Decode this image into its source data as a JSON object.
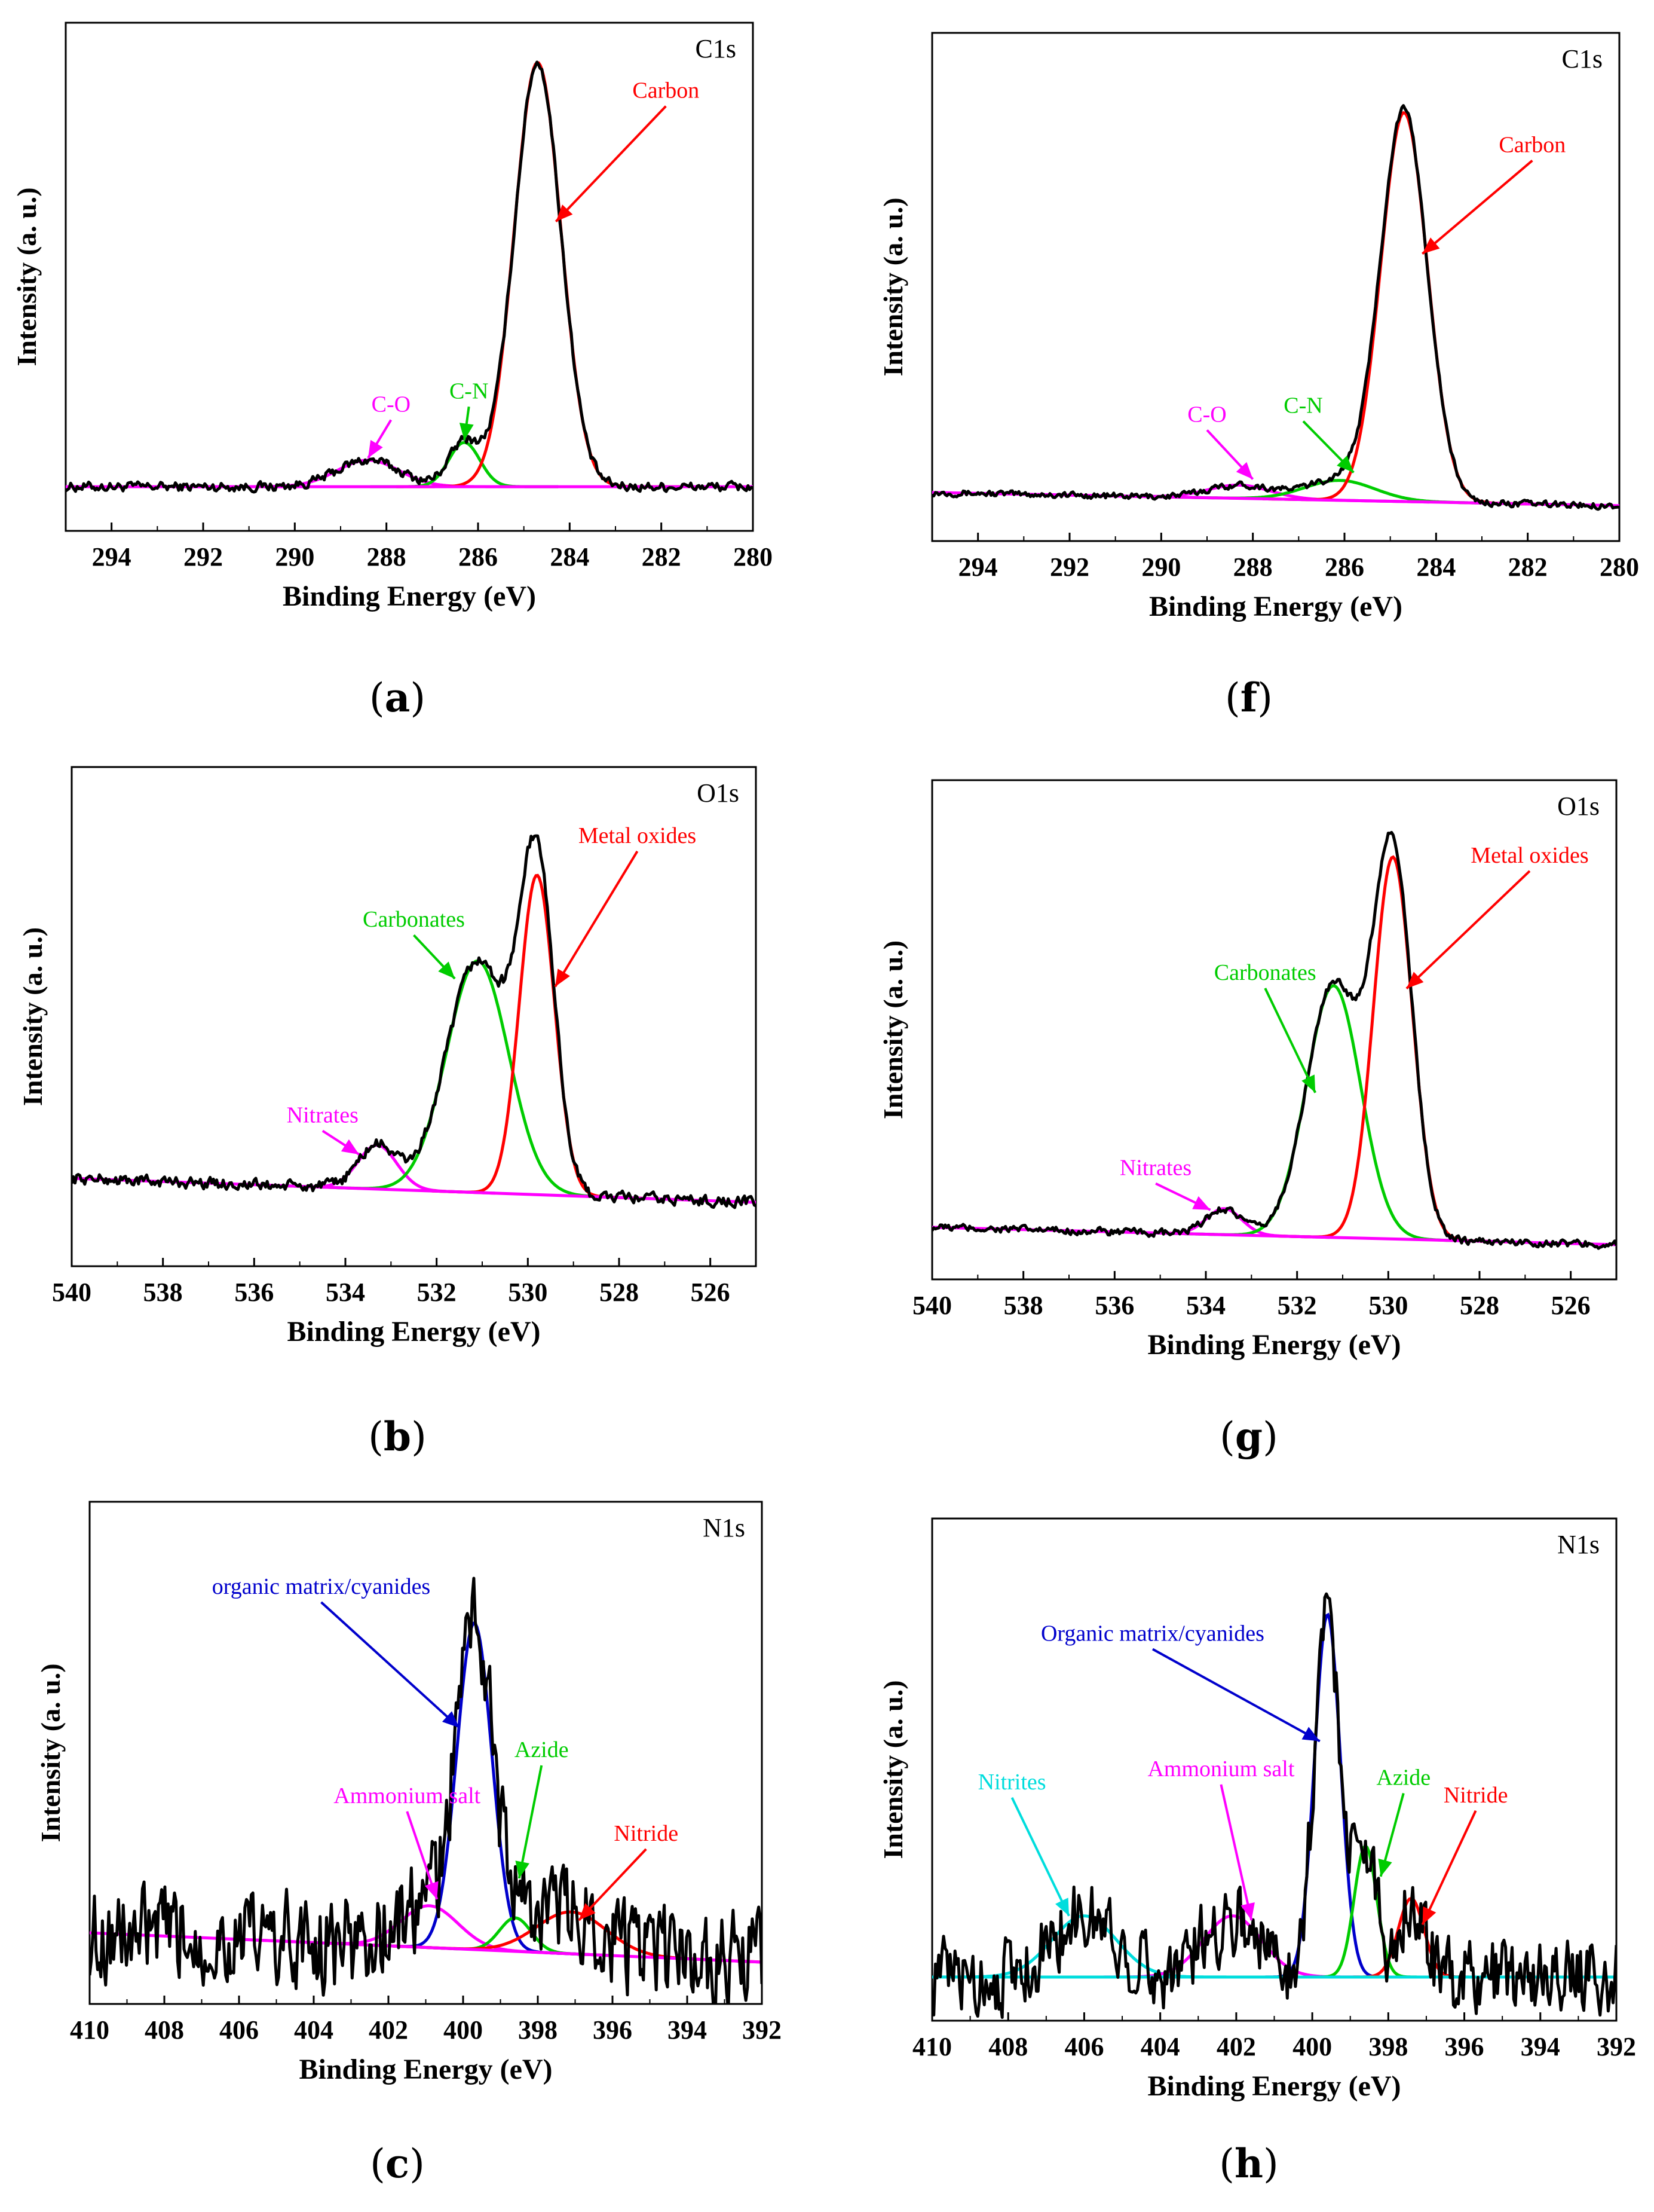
{
  "chart_data": [
    {
      "id": "a",
      "type": "line",
      "panel_label": "a",
      "core_level": "C1s",
      "xlabel": "Binding Energy (eV)",
      "ylabel": "Intensity (a. u.)",
      "xlim": [
        295,
        280
      ],
      "x_ticks": [
        294,
        292,
        290,
        288,
        286,
        284,
        282,
        280
      ],
      "ylim": [
        -0.1,
        1.05
      ],
      "baseline": {
        "color": "#ff00ff",
        "start": 0,
        "end": 0
      },
      "noise": 0.015,
      "peaks": [
        {
          "label": "C-O",
          "color": "#ff00ff",
          "center": 288.4,
          "height": 0.06,
          "fwhm": 1.6
        },
        {
          "label": "C-N",
          "color": "#00cc00",
          "center": 286.3,
          "height": 0.1,
          "fwhm": 0.8
        },
        {
          "label": "Carbon",
          "color": "#ff0000",
          "center": 284.7,
          "height": 0.96,
          "fwhm": 1.2
        }
      ],
      "annotations": [
        {
          "text": "C-O",
          "color": "#ff00ff",
          "text_pos": [
            287.9,
            0.17
          ],
          "arrow_to": [
            288.4,
            0.065
          ]
        },
        {
          "text": "C-N",
          "color": "#00cc00",
          "text_pos": [
            286.2,
            0.2
          ],
          "arrow_to": [
            286.3,
            0.105
          ]
        },
        {
          "text": "Carbon",
          "color": "#ff0000",
          "text_pos": [
            281.9,
            0.88
          ],
          "arrow_to": [
            284.3,
            0.6
          ]
        }
      ]
    },
    {
      "id": "f",
      "type": "line",
      "panel_label": "f",
      "core_level": "C1s",
      "xlabel": "Binding Energy (eV)",
      "ylabel": "Intensity (a. u.)",
      "xlim": [
        295,
        280
      ],
      "x_ticks": [
        294,
        292,
        290,
        288,
        286,
        284,
        282,
        280
      ],
      "ylim": [
        -0.1,
        1.05
      ],
      "baseline": {
        "color": "#ff00ff",
        "start": 0.01,
        "end": -0.02
      },
      "noise": 0.01,
      "peaks": [
        {
          "label": "C-O",
          "color": "#ff00ff",
          "center": 288.3,
          "height": 0.03,
          "fwhm": 1.6
        },
        {
          "label": "C-N",
          "color": "#00cc00",
          "center": 286.1,
          "height": 0.045,
          "fwhm": 1.8
        },
        {
          "label": "Carbon",
          "color": "#ff0000",
          "center": 284.7,
          "height": 0.88,
          "fwhm": 1.2
        }
      ],
      "annotations": [
        {
          "text": "C-O",
          "color": "#ff00ff",
          "text_pos": [
            289.0,
            0.17
          ],
          "arrow_to": [
            288.0,
            0.04
          ]
        },
        {
          "text": "C-N",
          "color": "#00cc00",
          "text_pos": [
            286.9,
            0.19
          ],
          "arrow_to": [
            285.8,
            0.055
          ]
        },
        {
          "text": "Carbon",
          "color": "#ff0000",
          "text_pos": [
            281.9,
            0.78
          ],
          "arrow_to": [
            284.3,
            0.55
          ]
        }
      ]
    },
    {
      "id": "b",
      "type": "line",
      "panel_label": "b",
      "core_level": "O1s",
      "xlabel": "Binding Energy (eV)",
      "ylabel": "Intensity (a. u.)",
      "xlim": [
        540,
        525
      ],
      "x_ticks": [
        540,
        538,
        536,
        534,
        532,
        530,
        528,
        526
      ],
      "ylim": [
        -0.2,
        1.05
      ],
      "baseline": {
        "color": "#ff00ff",
        "start": 0.02,
        "end": -0.04
      },
      "noise": 0.02,
      "peaks": [
        {
          "label": "Nitrates",
          "color": "#ff00ff",
          "center": 533.3,
          "height": 0.11,
          "fwhm": 1.0
        },
        {
          "label": "Carbonates",
          "color": "#00cc00",
          "center": 531.1,
          "height": 0.58,
          "fwhm": 1.6
        },
        {
          "label": "Metal oxides",
          "color": "#ff0000",
          "center": 529.8,
          "height": 0.8,
          "fwhm": 0.9
        }
      ],
      "annotations": [
        {
          "text": "Nitrates",
          "color": "#ff00ff",
          "text_pos": [
            534.5,
            0.16
          ],
          "arrow_to": [
            533.7,
            0.08
          ]
        },
        {
          "text": "Carbonates",
          "color": "#00cc00",
          "text_pos": [
            532.5,
            0.65
          ],
          "arrow_to": [
            531.6,
            0.52
          ]
        },
        {
          "text": "Metal oxides",
          "color": "#ff0000",
          "text_pos": [
            527.6,
            0.86
          ],
          "arrow_to": [
            529.4,
            0.5
          ]
        }
      ]
    },
    {
      "id": "g",
      "type": "line",
      "panel_label": "g",
      "core_level": "O1s",
      "xlabel": "Binding Energy (eV)",
      "ylabel": "Intensity (a. u.)",
      "xlim": [
        540,
        525
      ],
      "x_ticks": [
        540,
        538,
        536,
        534,
        532,
        530,
        528,
        526
      ],
      "ylim": [
        -0.1,
        1.05
      ],
      "baseline": {
        "color": "#ff00ff",
        "start": 0.02,
        "end": -0.02
      },
      "noise": 0.012,
      "peaks": [
        {
          "label": "Nitrates",
          "color": "#ff00ff",
          "center": 533.6,
          "height": 0.06,
          "fwhm": 0.9
        },
        {
          "label": "Carbonates",
          "color": "#00cc00",
          "center": 531.2,
          "height": 0.58,
          "fwhm": 1.4
        },
        {
          "label": "Metal oxides",
          "color": "#ff0000",
          "center": 529.9,
          "height": 0.88,
          "fwhm": 1.0
        }
      ],
      "annotations": [
        {
          "text": "Nitrates",
          "color": "#ff00ff",
          "text_pos": [
            535.1,
            0.14
          ],
          "arrow_to": [
            533.9,
            0.06
          ]
        },
        {
          "text": "Carbonates",
          "color": "#00cc00",
          "text_pos": [
            532.7,
            0.59
          ],
          "arrow_to": [
            531.6,
            0.33
          ]
        },
        {
          "text": "Metal oxides",
          "color": "#ff0000",
          "text_pos": [
            526.9,
            0.86
          ],
          "arrow_to": [
            529.6,
            0.57
          ]
        }
      ]
    },
    {
      "id": "c",
      "type": "line",
      "panel_label": "c",
      "core_level": "N1s",
      "xlabel": "Binding Energy (eV)",
      "ylabel": "Intensity (a. u.)",
      "xlim": [
        410,
        392
      ],
      "x_ticks": [
        410,
        408,
        406,
        404,
        402,
        400,
        398,
        396,
        394,
        392
      ],
      "ylim": [
        -0.15,
        1.05
      ],
      "baseline": {
        "color": "#ff00ff",
        "start": 0.02,
        "end": -0.05
      },
      "noise": 0.16,
      "peaks": [
        {
          "label": "Ammonium salt",
          "color": "#ff00ff",
          "center": 400.9,
          "height": 0.1,
          "fwhm": 1.8
        },
        {
          "label": "organic matrix/cyanides",
          "color": "#0000cc",
          "center": 399.7,
          "height": 0.78,
          "fwhm": 1.1
        },
        {
          "label": "Azide",
          "color": "#00cc00",
          "center": 398.6,
          "height": 0.08,
          "fwhm": 1.0
        },
        {
          "label": "Nitride",
          "color": "#ff0000",
          "center": 397.1,
          "height": 0.1,
          "fwhm": 2.2
        }
      ],
      "annotations": [
        {
          "text": "Ammonium salt",
          "color": "#ff00ff",
          "text_pos": [
            401.5,
            0.33
          ],
          "arrow_to": [
            400.7,
            0.1
          ]
        },
        {
          "text": "organic matrix/cyanides",
          "color": "#0000cc",
          "text_pos": [
            403.8,
            0.83
          ],
          "arrow_to": [
            400.1,
            0.51
          ]
        },
        {
          "text": "Azide",
          "color": "#00cc00",
          "text_pos": [
            397.9,
            0.44
          ],
          "arrow_to": [
            398.5,
            0.15
          ]
        },
        {
          "text": "Nitride",
          "color": "#ff0000",
          "text_pos": [
            395.1,
            0.24
          ],
          "arrow_to": [
            396.9,
            0.05
          ]
        }
      ]
    },
    {
      "id": "h",
      "type": "line",
      "panel_label": "h",
      "core_level": "N1s",
      "xlabel": "Binding Energy (eV)",
      "ylabel": "Intensity (a. u.)",
      "xlim": [
        410,
        392
      ],
      "x_ticks": [
        410,
        408,
        406,
        404,
        402,
        400,
        398,
        396,
        394,
        392
      ],
      "ylim": [
        -0.1,
        1.05
      ],
      "baseline": {
        "color": "#00dddd",
        "start": 0,
        "end": 0
      },
      "noise": 0.12,
      "peaks": [
        {
          "label": "Nitrites",
          "color": "#00dddd",
          "center": 406.0,
          "height": 0.14,
          "fwhm": 2.0
        },
        {
          "label": "Ammonium salt",
          "color": "#ff00ff",
          "center": 402.1,
          "height": 0.14,
          "fwhm": 1.8
        },
        {
          "label": "Organic matrix/cyanides",
          "color": "#0000cc",
          "center": 399.6,
          "height": 0.83,
          "fwhm": 0.8
        },
        {
          "label": "Azide",
          "color": "#00cc00",
          "center": 398.6,
          "height": 0.3,
          "fwhm": 0.7
        },
        {
          "label": "Nitride",
          "color": "#ff0000",
          "center": 397.4,
          "height": 0.18,
          "fwhm": 0.8
        }
      ],
      "annotations": [
        {
          "text": "Nitrites",
          "color": "#00dddd",
          "text_pos": [
            407.9,
            0.43
          ],
          "arrow_to": [
            406.4,
            0.14
          ]
        },
        {
          "text": "Ammonium salt",
          "color": "#ff00ff",
          "text_pos": [
            402.4,
            0.46
          ],
          "arrow_to": [
            401.6,
            0.13
          ]
        },
        {
          "text": "Organic matrix/cyanides",
          "color": "#0000cc",
          "text_pos": [
            404.2,
            0.77
          ],
          "arrow_to": [
            399.8,
            0.54
          ]
        },
        {
          "text": "Azide",
          "color": "#00cc00",
          "text_pos": [
            397.6,
            0.44
          ],
          "arrow_to": [
            398.2,
            0.23
          ]
        },
        {
          "text": "Nitride",
          "color": "#ff0000",
          "text_pos": [
            395.7,
            0.4
          ],
          "arrow_to": [
            397.1,
            0.12
          ]
        }
      ]
    }
  ]
}
